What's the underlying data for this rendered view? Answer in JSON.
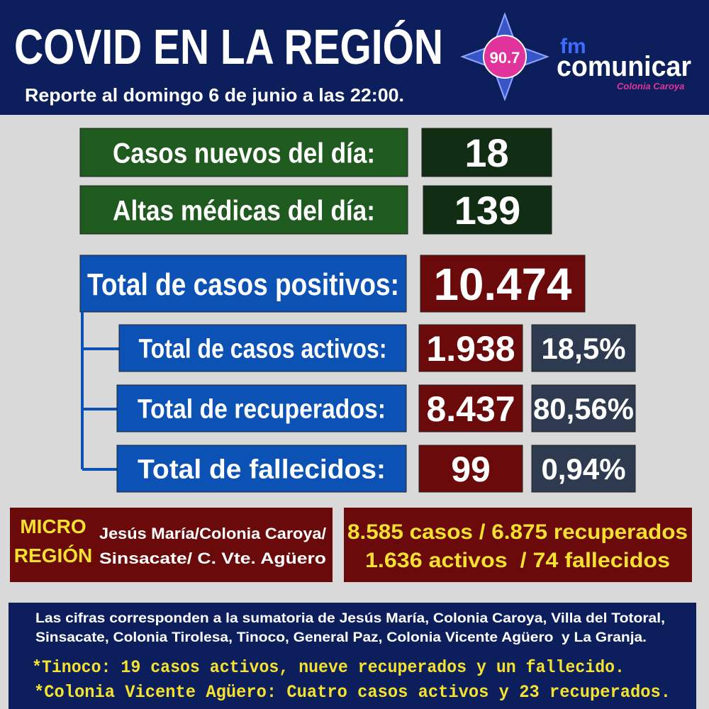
{
  "header": {
    "title": "COVID EN LA REGIÓN",
    "subtitle": "Reporte al domingo 6 de junio a las 22:00.",
    "logo": {
      "frequency": "90.7",
      "brand_prefix": "fm",
      "brand": "comunicar",
      "location": "Colonia Caroya"
    }
  },
  "daily": [
    {
      "label": "Casos nuevos del día:",
      "value": "18"
    },
    {
      "label": "Altas médicas del día:",
      "value": "139"
    }
  ],
  "total": {
    "label": "Total de casos positivos:",
    "value": "10.474"
  },
  "breakdown": [
    {
      "label": "Total de casos activos:",
      "value": "1.938",
      "percent": "18,5%"
    },
    {
      "label": "Total de recuperados:",
      "value": "8.437",
      "percent": "80,56%"
    },
    {
      "label": "Total de fallecidos:",
      "value": "99",
      "percent": "0,94%"
    }
  ],
  "micro_region": {
    "title": [
      "MICRO",
      "REGIÓN"
    ],
    "localities": [
      "Jesús María/Colonia Caroya/",
      "Sinsacate/ C. Vte. Agüero"
    ],
    "figures": [
      "8.585 casos / 6.875 recuperados",
      "1.636 activos  / 74 fallecidos"
    ]
  },
  "footer": {
    "note": [
      "Las cifras corresponden a la sumatoria de Jesús María, Colonia Caroya, Villa del Totoral,",
      "Sinsacate, Colonia Tirolesa, Tinoco, General Paz, Colonia Vicente Agüero  y La Granja."
    ],
    "highlights": [
      "*Tinoco: 19 casos activos, nueve recuperados y un fallecido.",
      "*Colonia Vicente Agüero: Cuatro casos activos y 23 recuperados."
    ]
  }
}
